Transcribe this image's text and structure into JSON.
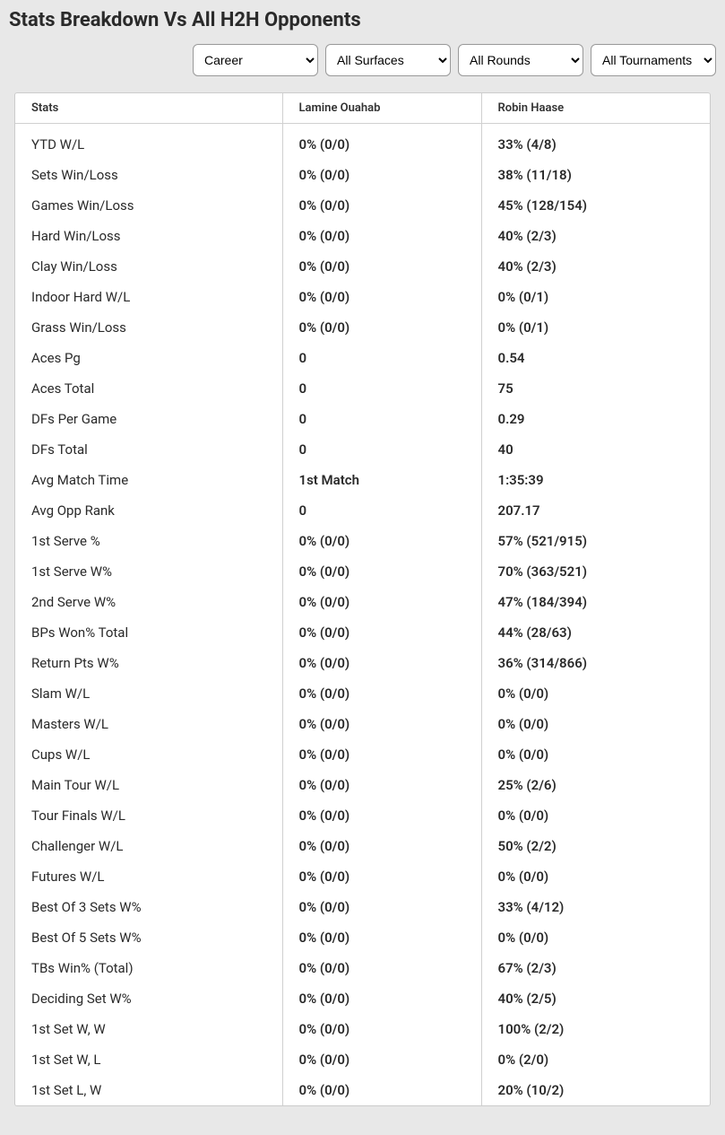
{
  "title": "Stats Breakdown Vs All H2H Opponents",
  "filters": {
    "timeframe": "Career",
    "surface": "All Surfaces",
    "round": "All Rounds",
    "tournament": "All Tournaments"
  },
  "table": {
    "headers": {
      "stats": "Stats",
      "p1": "Lamine Ouahab",
      "p2": "Robin Haase"
    },
    "rows": [
      {
        "stat": "YTD W/L",
        "p1": "0% (0/0)",
        "p2": "33% (4/8)"
      },
      {
        "stat": "Sets Win/Loss",
        "p1": "0% (0/0)",
        "p2": "38% (11/18)"
      },
      {
        "stat": "Games Win/Loss",
        "p1": "0% (0/0)",
        "p2": "45% (128/154)"
      },
      {
        "stat": "Hard Win/Loss",
        "p1": "0% (0/0)",
        "p2": "40% (2/3)"
      },
      {
        "stat": "Clay Win/Loss",
        "p1": "0% (0/0)",
        "p2": "40% (2/3)"
      },
      {
        "stat": "Indoor Hard W/L",
        "p1": "0% (0/0)",
        "p2": "0% (0/1)"
      },
      {
        "stat": "Grass Win/Loss",
        "p1": "0% (0/0)",
        "p2": "0% (0/1)"
      },
      {
        "stat": "Aces Pg",
        "p1": "0",
        "p2": "0.54"
      },
      {
        "stat": "Aces Total",
        "p1": "0",
        "p2": "75"
      },
      {
        "stat": "DFs Per Game",
        "p1": "0",
        "p2": "0.29"
      },
      {
        "stat": "DFs Total",
        "p1": "0",
        "p2": "40"
      },
      {
        "stat": "Avg Match Time",
        "p1": "1st Match",
        "p2": "1:35:39"
      },
      {
        "stat": "Avg Opp Rank",
        "p1": "0",
        "p2": "207.17"
      },
      {
        "stat": "1st Serve %",
        "p1": "0% (0/0)",
        "p2": "57% (521/915)"
      },
      {
        "stat": "1st Serve W%",
        "p1": "0% (0/0)",
        "p2": "70% (363/521)"
      },
      {
        "stat": "2nd Serve W%",
        "p1": "0% (0/0)",
        "p2": "47% (184/394)"
      },
      {
        "stat": "BPs Won% Total",
        "p1": "0% (0/0)",
        "p2": "44% (28/63)"
      },
      {
        "stat": "Return Pts W%",
        "p1": "0% (0/0)",
        "p2": "36% (314/866)"
      },
      {
        "stat": "Slam W/L",
        "p1": "0% (0/0)",
        "p2": "0% (0/0)"
      },
      {
        "stat": "Masters W/L",
        "p1": "0% (0/0)",
        "p2": "0% (0/0)"
      },
      {
        "stat": "Cups W/L",
        "p1": "0% (0/0)",
        "p2": "0% (0/0)"
      },
      {
        "stat": "Main Tour W/L",
        "p1": "0% (0/0)",
        "p2": "25% (2/6)"
      },
      {
        "stat": "Tour Finals W/L",
        "p1": "0% (0/0)",
        "p2": "0% (0/0)"
      },
      {
        "stat": "Challenger W/L",
        "p1": "0% (0/0)",
        "p2": "50% (2/2)"
      },
      {
        "stat": "Futures W/L",
        "p1": "0% (0/0)",
        "p2": "0% (0/0)"
      },
      {
        "stat": "Best Of 3 Sets W%",
        "p1": "0% (0/0)",
        "p2": "33% (4/12)"
      },
      {
        "stat": "Best Of 5 Sets W%",
        "p1": "0% (0/0)",
        "p2": "0% (0/0)"
      },
      {
        "stat": "TBs Win% (Total)",
        "p1": "0% (0/0)",
        "p2": "67% (2/3)"
      },
      {
        "stat": "Deciding Set W%",
        "p1": "0% (0/0)",
        "p2": "40% (2/5)"
      },
      {
        "stat": "1st Set W, W",
        "p1": "0% (0/0)",
        "p2": "100% (2/2)"
      },
      {
        "stat": "1st Set W, L",
        "p1": "0% (0/0)",
        "p2": "0% (2/0)"
      },
      {
        "stat": "1st Set L, W",
        "p1": "0% (0/0)",
        "p2": "20% (10/2)"
      }
    ]
  }
}
